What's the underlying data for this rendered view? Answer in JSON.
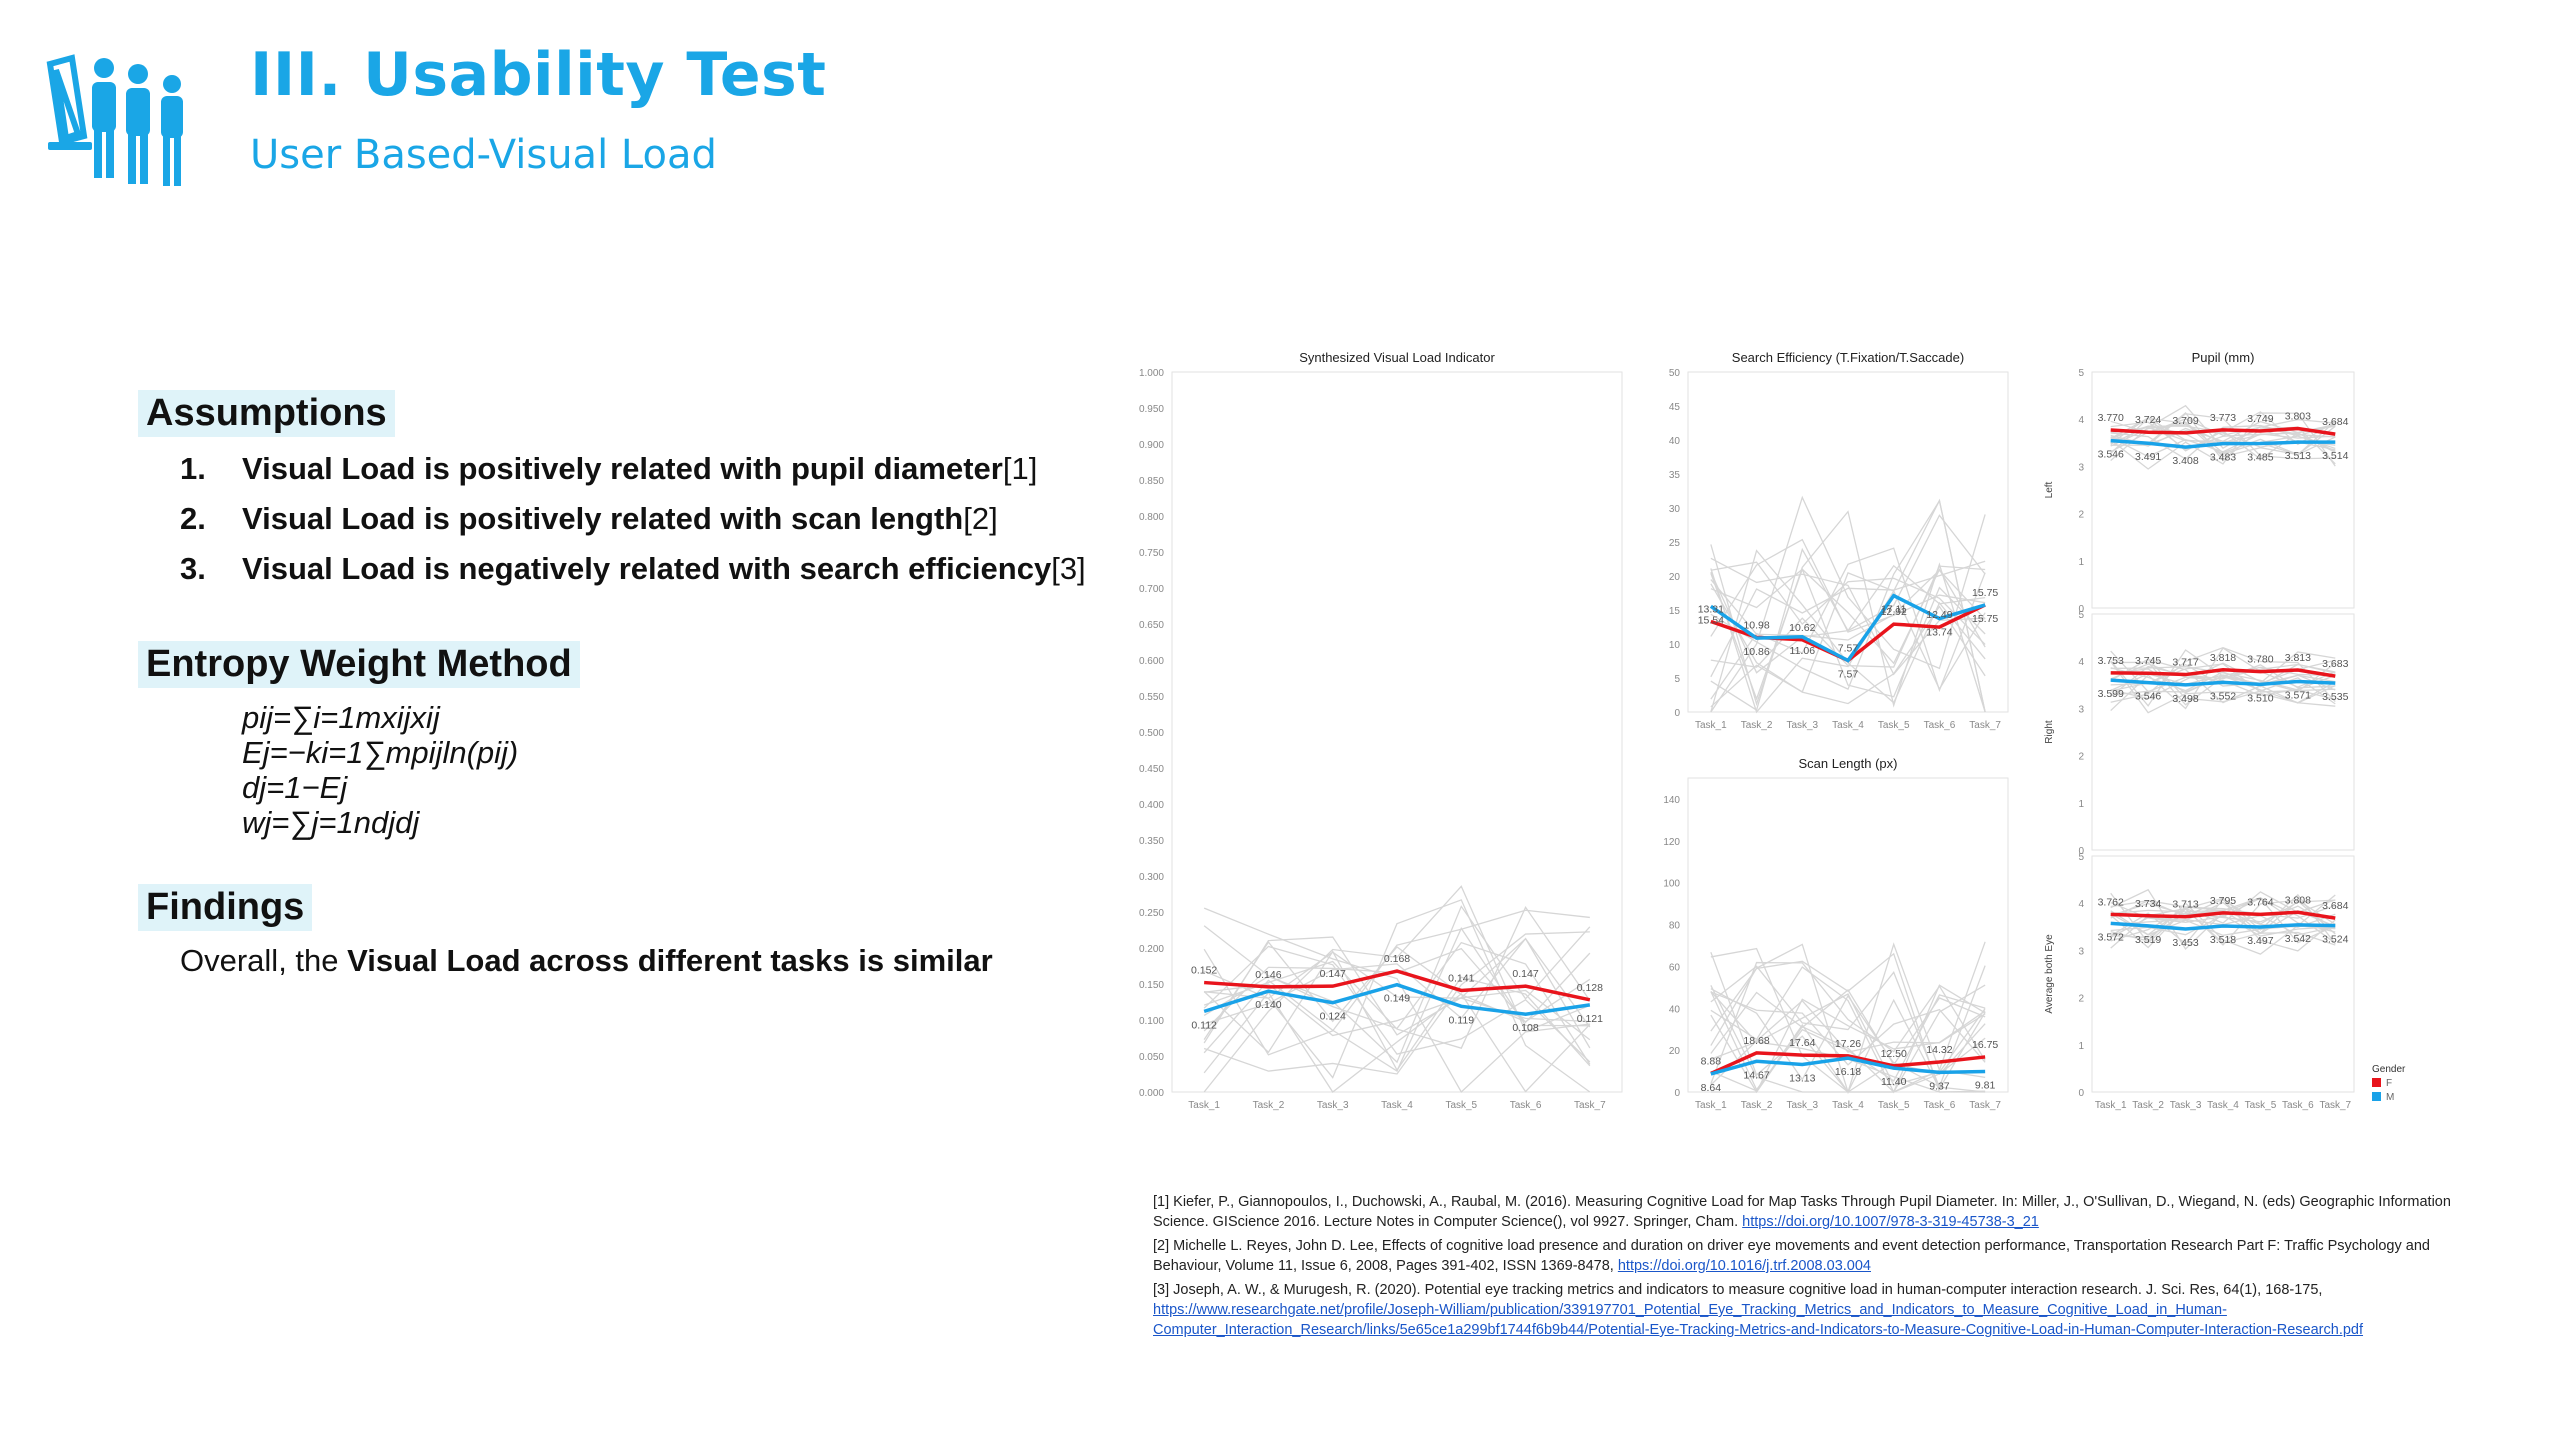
{
  "header": {
    "title": "III. Usability Test",
    "subtitle": "User Based-Visual Load"
  },
  "assumptions": {
    "heading": "Assumptions",
    "items": [
      {
        "num": "1.",
        "bold": "Visual Load is positively related with pupil diameter",
        "ref": "[1]"
      },
      {
        "num": "2.",
        "bold": "Visual Load is positively related with scan length",
        "ref": "[2]"
      },
      {
        "num": "3.",
        "bold": "Visual Load is negatively related with search efficiency",
        "ref": "[3]"
      }
    ]
  },
  "entropy": {
    "heading": "Entropy Weight Method",
    "formulas": [
      "pij=∑i=1mxijxij",
      "Ej=−ki=1∑mpijln(pij)",
      "dj=1−Ej",
      "wj=∑j=1ndjdj"
    ]
  },
  "findings": {
    "heading": "Findings",
    "prefix": "Overall, the ",
    "bold": "Visual Load across different tasks is similar"
  },
  "colors": {
    "accent": "#1aa6e6",
    "female": "#e8141c",
    "male": "#19a2e8",
    "gray": "#d6d6d6"
  },
  "chart_data": [
    {
      "type": "line",
      "title": "Synthesized Visual Load Indicator",
      "categories": [
        "Task_1",
        "Task_2",
        "Task_3",
        "Task_4",
        "Task_5",
        "Task_6",
        "Task_7"
      ],
      "ylim": [
        0,
        1
      ],
      "yticks": [
        "0.000",
        "0.050",
        "0.100",
        "0.150",
        "0.200",
        "0.250",
        "0.300",
        "0.350",
        "0.400",
        "0.450",
        "0.500",
        "0.550",
        "0.600",
        "0.650",
        "0.700",
        "0.750",
        "0.800",
        "0.850",
        "0.900",
        "0.950",
        "1.000"
      ],
      "series": [
        {
          "name": "F",
          "values": [
            0.152,
            0.146,
            0.147,
            0.168,
            0.141,
            0.147,
            0.128
          ]
        },
        {
          "name": "M",
          "values": [
            0.112,
            0.14,
            0.124,
            0.149,
            0.119,
            0.108,
            0.121
          ]
        }
      ]
    },
    {
      "type": "line",
      "title": "Search Efficiency (T.Fixation/T.Saccade)",
      "categories": [
        "Task_1",
        "Task_2",
        "Task_3",
        "Task_4",
        "Task_5",
        "Task_6",
        "Task_7"
      ],
      "ylim": [
        0,
        50
      ],
      "yticks": [
        "0",
        "5",
        "10",
        "15",
        "20",
        "25",
        "30",
        "35",
        "40",
        "45",
        "50"
      ],
      "series": [
        {
          "name": "F",
          "values": [
            13.31,
            10.98,
            10.62,
            7.57,
            12.92,
            12.49,
            15.75
          ]
        },
        {
          "name": "M",
          "values": [
            15.54,
            10.86,
            11.06,
            7.57,
            17.11,
            13.74,
            15.75
          ]
        }
      ]
    },
    {
      "type": "line",
      "title": "Scan Length (px)",
      "categories": [
        "Task_1",
        "Task_2",
        "Task_3",
        "Task_4",
        "Task_5",
        "Task_6",
        "Task_7"
      ],
      "ylim": [
        0,
        150
      ],
      "yticks": [
        "0",
        "20",
        "40",
        "60",
        "80",
        "100",
        "120",
        "140"
      ],
      "series": [
        {
          "name": "F",
          "values": [
            8.88,
            18.68,
            17.64,
            17.26,
            12.5,
            14.32,
            16.75
          ]
        },
        {
          "name": "M",
          "values": [
            8.64,
            14.67,
            13.13,
            16.18,
            11.4,
            9.37,
            9.81
          ]
        }
      ]
    },
    {
      "type": "line",
      "title": "Pupil (mm)",
      "categories": [
        "Task_1",
        "Task_2",
        "Task_3",
        "Task_4",
        "Task_5",
        "Task_6",
        "Task_7"
      ],
      "panels": [
        {
          "label": "Left",
          "ylim": [
            0,
            5
          ],
          "series": [
            {
              "name": "F",
              "values": [
                3.77,
                3.724,
                3.709,
                3.773,
                3.749,
                3.803,
                3.684
              ]
            },
            {
              "name": "M",
              "values": [
                3.546,
                3.491,
                3.408,
                3.483,
                3.485,
                3.513,
                3.514
              ]
            }
          ]
        },
        {
          "label": "Right",
          "ylim": [
            0,
            5
          ],
          "series": [
            {
              "name": "F",
              "values": [
                3.753,
                3.745,
                3.717,
                3.818,
                3.78,
                3.813,
                3.683
              ]
            },
            {
              "name": "M",
              "values": [
                3.599,
                3.546,
                3.498,
                3.552,
                3.51,
                3.571,
                3.535
              ]
            }
          ]
        },
        {
          "label": "Average both Eye",
          "ylim": [
            0,
            5
          ],
          "series": [
            {
              "name": "F",
              "values": [
                3.762,
                3.734,
                3.713,
                3.795,
                3.764,
                3.808,
                3.684
              ]
            },
            {
              "name": "M",
              "values": [
                3.572,
                3.519,
                3.453,
                3.518,
                3.497,
                3.542,
                3.524
              ]
            }
          ]
        }
      ],
      "yticks": [
        "0",
        "1",
        "2",
        "3",
        "4",
        "5"
      ]
    }
  ],
  "legend": {
    "title": "Gender",
    "items": [
      "F",
      "M"
    ]
  },
  "references": [
    {
      "text": "[1] Kiefer, P., Giannopoulos, I., Duchowski, A., Raubal, M. (2016). Measuring Cognitive Load for Map Tasks Through Pupil Diameter. In: Miller, J., O'Sullivan, D., Wiegand, N. (eds) Geographic Information Science. GIScience 2016. Lecture Notes in Computer Science(), vol 9927. Springer, Cham. ",
      "link": "https://doi.org/10.1007/978-3-319-45738-3_21"
    },
    {
      "text": "[2] Michelle L. Reyes, John D. Lee, Effects of cognitive load presence and duration on driver eye movements and event detection performance, Transportation Research Part F: Traffic Psychology and Behaviour, Volume 11, Issue 6, 2008, Pages 391-402, ISSN 1369-8478, ",
      "link": "https://doi.org/10.1016/j.trf.2008.03.004"
    },
    {
      "text": "[3] Joseph, A. W., & Murugesh, R. (2020). Potential eye tracking metrics and indicators to measure cognitive load in human-computer interaction research. J. Sci. Res, 64(1), 168-175, ",
      "link": "https://www.researchgate.net/profile/Joseph-William/publication/339197701_Potential_Eye_Tracking_Metrics_and_Indicators_to_Measure_Cognitive_Load_in_Human-Computer_Interaction_Research/links/5e65ce1a299bf1744f6b9b44/Potential-Eye-Tracking-Metrics-and-Indicators-to-Measure-Cognitive-Load-in-Human-Computer-Interaction-Research.pdf"
    }
  ]
}
